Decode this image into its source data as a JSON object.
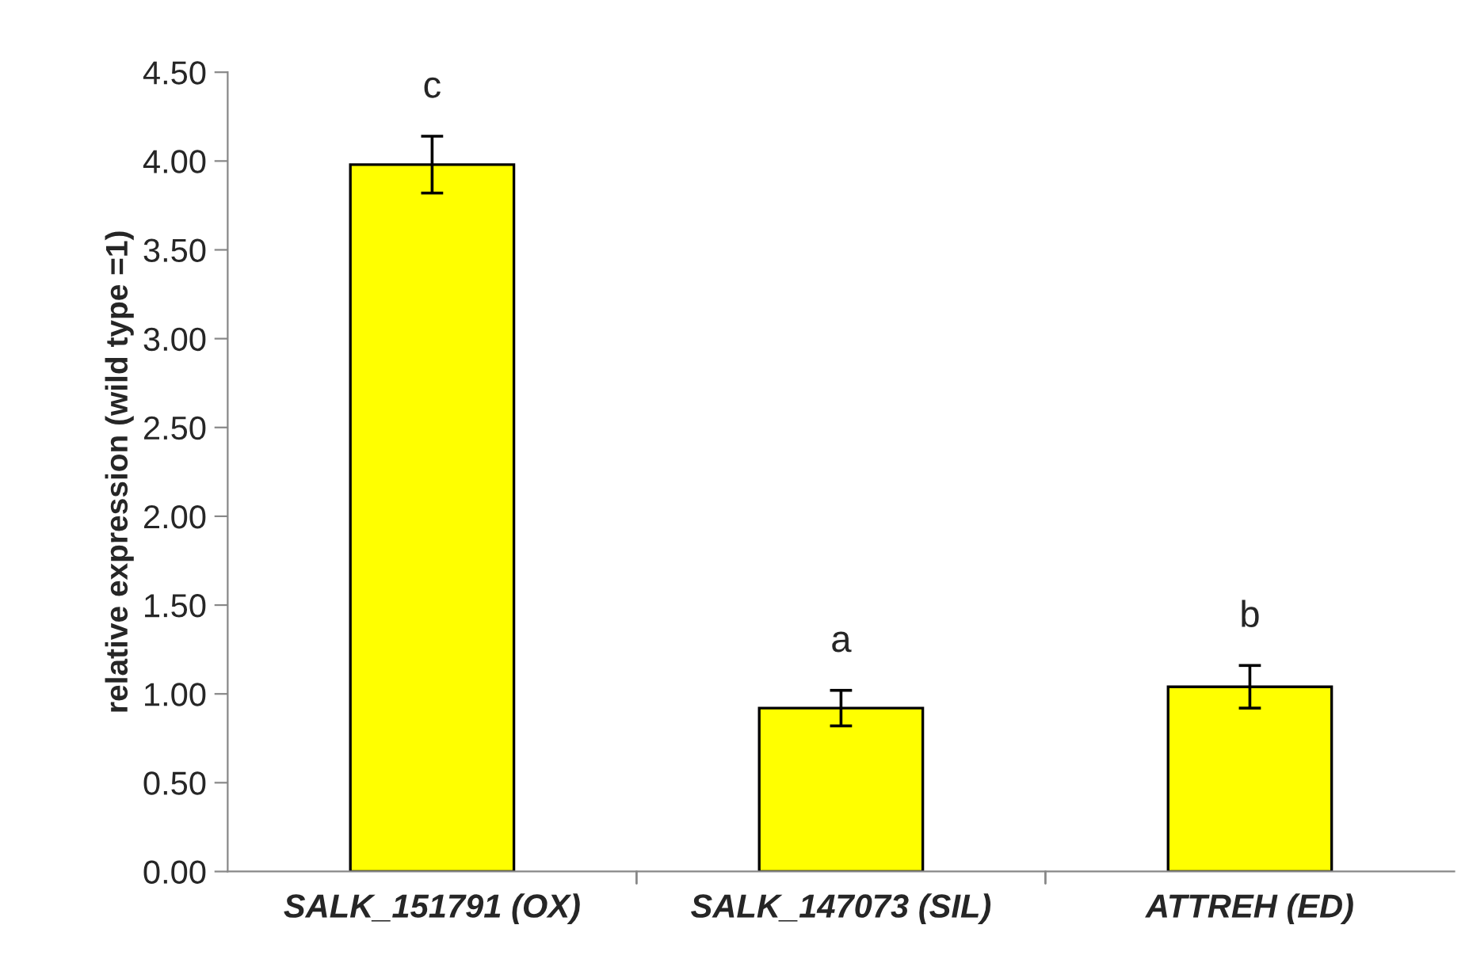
{
  "chart_data": {
    "type": "bar",
    "ylabel": "relative expression (wild type =1)",
    "categories": [
      "SALK_151791 (OX)",
      "SALK_147073 (SIL)",
      "ATTREH (ED)"
    ],
    "values": [
      3.98,
      0.92,
      1.04
    ],
    "errors": [
      0.16,
      0.1,
      0.12
    ],
    "color": "#ffff00",
    "ylim": [
      0,
      4.5
    ],
    "yticks": [
      {
        "value": 0,
        "label": "0.00"
      },
      {
        "value": 0.5,
        "label": "0.50"
      },
      {
        "value": 1,
        "label": "1.00"
      },
      {
        "value": 1.5,
        "label": "1.50"
      },
      {
        "value": 2,
        "label": "2.00"
      },
      {
        "value": 2.5,
        "label": "2.50"
      },
      {
        "value": 3,
        "label": "3.00"
      },
      {
        "value": 3.5,
        "label": "3.50"
      },
      {
        "value": 4,
        "label": "4.00"
      },
      {
        "value": 4.5,
        "label": "4.50"
      }
    ],
    "grid": false,
    "annotations": [
      "c",
      "a",
      "b"
    ]
  }
}
